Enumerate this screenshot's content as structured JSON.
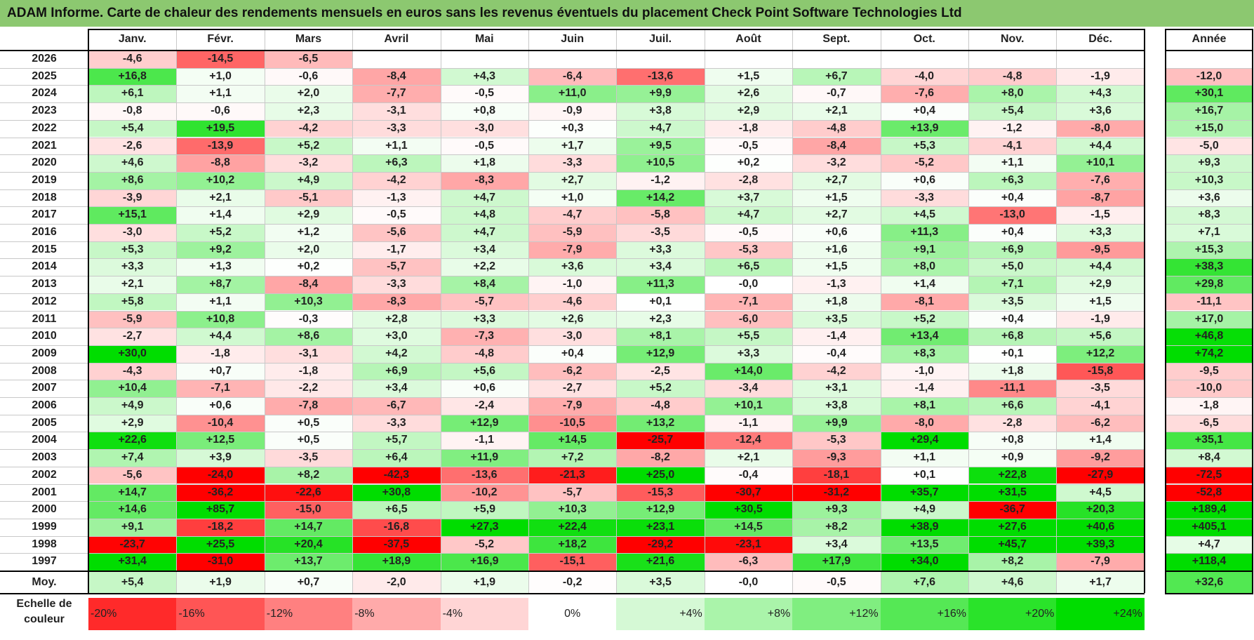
{
  "title": "ADAM Informe. Carte de chaleur des rendements mensuels en euros sans les revenus éventuels du placement Check Point Software Technologies Ltd",
  "chart_data": {
    "type": "heatmap",
    "title": "ADAM Informe. Carte de chaleur des rendements mensuels en euros sans les revenus éventuels du placement Check Point Software Technologies Ltd",
    "columns": [
      "Janv.",
      "Févr.",
      "Mars",
      "Avril",
      "Mai",
      "Juin",
      "Juil.",
      "Août",
      "Sept.",
      "Oct.",
      "Nov.",
      "Déc."
    ],
    "year_column_label": "Année",
    "rows": [
      {
        "year": "2026",
        "months": [
          "-4,6",
          "-14,5",
          "-6,5",
          "",
          "",
          "",
          "",
          "",
          "",
          "",
          "",
          ""
        ],
        "annual": ""
      },
      {
        "year": "2025",
        "months": [
          "+16,8",
          "+1,0",
          "-0,6",
          "-8,4",
          "+4,3",
          "-6,4",
          "-13,6",
          "+1,5",
          "+6,7",
          "-4,0",
          "-4,8",
          "-1,9"
        ],
        "annual": "-12,0"
      },
      {
        "year": "2024",
        "months": [
          "+6,1",
          "+1,1",
          "+2,0",
          "-7,7",
          "-0,5",
          "+11,0",
          "+9,9",
          "+2,6",
          "-0,7",
          "-7,6",
          "+8,0",
          "+4,3"
        ],
        "annual": "+30,1"
      },
      {
        "year": "2023",
        "months": [
          "-0,8",
          "-0,6",
          "+2,3",
          "-3,1",
          "+0,8",
          "-0,9",
          "+3,8",
          "+2,9",
          "+2,1",
          "+0,4",
          "+5,4",
          "+3,6"
        ],
        "annual": "+16,7"
      },
      {
        "year": "2022",
        "months": [
          "+5,4",
          "+19,5",
          "-4,2",
          "-3,3",
          "-3,0",
          "+0,3",
          "+4,7",
          "-1,8",
          "-4,8",
          "+13,9",
          "-1,2",
          "-8,0"
        ],
        "annual": "+15,0"
      },
      {
        "year": "2021",
        "months": [
          "-2,6",
          "-13,9",
          "+5,2",
          "+1,1",
          "-0,5",
          "+1,7",
          "+9,5",
          "-0,5",
          "-8,4",
          "+5,3",
          "-4,1",
          "+4,4"
        ],
        "annual": "-5,0"
      },
      {
        "year": "2020",
        "months": [
          "+4,6",
          "-8,8",
          "-3,2",
          "+6,3",
          "+1,8",
          "-3,3",
          "+10,5",
          "+0,2",
          "-3,2",
          "-5,2",
          "+1,1",
          "+10,1"
        ],
        "annual": "+9,3"
      },
      {
        "year": "2019",
        "months": [
          "+8,6",
          "+10,2",
          "+4,9",
          "-4,2",
          "-8,3",
          "+2,7",
          "-1,2",
          "-2,8",
          "+2,7",
          "+0,6",
          "+6,3",
          "-7,6"
        ],
        "annual": "+10,3"
      },
      {
        "year": "2018",
        "months": [
          "-3,9",
          "+2,1",
          "-5,1",
          "-1,3",
          "+4,7",
          "+1,0",
          "+14,2",
          "+3,7",
          "+1,5",
          "-3,3",
          "+0,4",
          "-8,7"
        ],
        "annual": "+3,6"
      },
      {
        "year": "2017",
        "months": [
          "+15,1",
          "+1,4",
          "+2,9",
          "-0,5",
          "+4,8",
          "-4,7",
          "-5,8",
          "+4,7",
          "+2,7",
          "+4,5",
          "-13,0",
          "-1,5"
        ],
        "annual": "+8,3"
      },
      {
        "year": "2016",
        "months": [
          "-3,0",
          "+5,2",
          "+1,2",
          "-5,6",
          "+4,7",
          "-5,9",
          "-3,5",
          "-0,5",
          "+0,6",
          "+11,3",
          "+0,4",
          "+3,3"
        ],
        "annual": "+7,1"
      },
      {
        "year": "2015",
        "months": [
          "+5,3",
          "+9,2",
          "+2,0",
          "-1,7",
          "+3,4",
          "-7,9",
          "+3,3",
          "-5,3",
          "+1,6",
          "+9,1",
          "+6,9",
          "-9,5"
        ],
        "annual": "+15,3"
      },
      {
        "year": "2014",
        "months": [
          "+3,3",
          "+1,3",
          "+0,2",
          "-5,7",
          "+2,2",
          "+3,6",
          "+3,4",
          "+6,5",
          "+1,5",
          "+8,0",
          "+5,0",
          "+4,4"
        ],
        "annual": "+38,3"
      },
      {
        "year": "2013",
        "months": [
          "+2,1",
          "+8,7",
          "-8,4",
          "-3,3",
          "+8,4",
          "-1,0",
          "+11,3",
          "-0,0",
          "-1,3",
          "+1,4",
          "+7,1",
          "+2,9"
        ],
        "annual": "+29,8"
      },
      {
        "year": "2012",
        "months": [
          "+5,8",
          "+1,1",
          "+10,3",
          "-8,3",
          "-5,7",
          "-4,6",
          "+0,1",
          "-7,1",
          "+1,8",
          "-8,1",
          "+3,5",
          "+1,5"
        ],
        "annual": "-11,1"
      },
      {
        "year": "2011",
        "months": [
          "-5,9",
          "+10,8",
          "-0,3",
          "+2,8",
          "+3,3",
          "+2,6",
          "+2,3",
          "-6,0",
          "+3,5",
          "+5,2",
          "+0,4",
          "-1,9"
        ],
        "annual": "+17,0"
      },
      {
        "year": "2010",
        "months": [
          "-2,7",
          "+4,4",
          "+8,6",
          "+3,0",
          "-7,3",
          "-3,0",
          "+8,1",
          "+5,5",
          "-1,4",
          "+13,4",
          "+6,8",
          "+5,6"
        ],
        "annual": "+46,8"
      },
      {
        "year": "2009",
        "months": [
          "+30,0",
          "-1,8",
          "-3,1",
          "+4,2",
          "-4,8",
          "+0,4",
          "+12,9",
          "+3,3",
          "-0,4",
          "+8,3",
          "+0,1",
          "+12,2"
        ],
        "annual": "+74,2"
      },
      {
        "year": "2008",
        "months": [
          "-4,3",
          "+0,7",
          "-1,8",
          "+6,9",
          "+5,6",
          "-6,2",
          "-2,5",
          "+14,0",
          "-4,2",
          "-1,0",
          "+1,8",
          "-15,8"
        ],
        "annual": "-9,5"
      },
      {
        "year": "2007",
        "months": [
          "+10,4",
          "-7,1",
          "-2,2",
          "+3,4",
          "+0,6",
          "-2,7",
          "+5,2",
          "-3,4",
          "+3,1",
          "-1,4",
          "-11,1",
          "-3,5"
        ],
        "annual": "-10,0"
      },
      {
        "year": "2006",
        "months": [
          "+4,9",
          "+0,6",
          "-7,8",
          "-6,7",
          "-2,4",
          "-7,9",
          "-4,8",
          "+10,1",
          "+3,8",
          "+8,1",
          "+6,6",
          "-4,1"
        ],
        "annual": "-1,8"
      },
      {
        "year": "2005",
        "months": [
          "+2,9",
          "-10,4",
          "+0,5",
          "-3,3",
          "+12,9",
          "-10,5",
          "+13,2",
          "-1,1",
          "+9,9",
          "-8,0",
          "-2,8",
          "-6,2"
        ],
        "annual": "-6,5"
      },
      {
        "year": "2004",
        "months": [
          "+22,6",
          "+12,5",
          "+0,5",
          "+5,7",
          "-1,1",
          "+14,5",
          "-25,7",
          "-12,4",
          "-5,3",
          "+29,4",
          "+0,8",
          "+1,4"
        ],
        "annual": "+35,1"
      },
      {
        "year": "2003",
        "months": [
          "+7,4",
          "+3,9",
          "-3,5",
          "+6,4",
          "+11,9",
          "+7,2",
          "-8,2",
          "+2,1",
          "-9,3",
          "+1,1",
          "+0,9",
          "-9,2"
        ],
        "annual": "+8,4"
      },
      {
        "year": "2002",
        "months": [
          "-5,6",
          "-24,0",
          "+8,2",
          "-42,3",
          "-13,6",
          "-21,3",
          "+25,0",
          "-0,4",
          "-18,1",
          "+0,1",
          "+22,8",
          "-27,9"
        ],
        "annual": "-72,5"
      },
      {
        "year": "2001",
        "months": [
          "+14,7",
          "-36,2",
          "-22,6",
          "+30,8",
          "-10,2",
          "-5,7",
          "-15,3",
          "-30,7",
          "-31,2",
          "+35,7",
          "+31,5",
          "+4,5"
        ],
        "annual": "-52,8"
      },
      {
        "year": "2000",
        "months": [
          "+14,6",
          "+85,7",
          "-15,0",
          "+6,5",
          "+5,9",
          "+10,3",
          "+12,9",
          "+30,5",
          "+9,3",
          "+4,9",
          "-36,7",
          "+20,3"
        ],
        "annual": "+189,4"
      },
      {
        "year": "1999",
        "months": [
          "+9,1",
          "-18,2",
          "+14,7",
          "-16,8",
          "+27,3",
          "+22,4",
          "+23,1",
          "+14,5",
          "+8,2",
          "+38,9",
          "+27,6",
          "+40,6"
        ],
        "annual": "+405,1"
      },
      {
        "year": "1998",
        "months": [
          "-23,7",
          "+25,5",
          "+20,4",
          "-37,5",
          "-5,2",
          "+18,2",
          "-29,2",
          "-23,1",
          "+3,4",
          "+13,5",
          "+45,7",
          "+39,3"
        ],
        "annual": "+4,7"
      },
      {
        "year": "1997",
        "months": [
          "+31,4",
          "-31,0",
          "+13,7",
          "+18,9",
          "+16,9",
          "-15,1",
          "+21,6",
          "-6,3",
          "+17,9",
          "+34,0",
          "+8,2",
          "-7,9"
        ],
        "annual": "+118,4"
      }
    ],
    "average": {
      "label": "Moy.",
      "months": [
        "+5,4",
        "+1,9",
        "+0,7",
        "-2,0",
        "+1,9",
        "-0,2",
        "+3,5",
        "-0,0",
        "-0,5",
        "+7,6",
        "+4,6",
        "+1,7"
      ],
      "annual": "+32,6"
    },
    "scale": {
      "label_line1": "Echelle de",
      "label_line2": "couleur",
      "steps": [
        {
          "label": "-20%",
          "value": -20
        },
        {
          "label": "-16%",
          "value": -16
        },
        {
          "label": "-12%",
          "value": -12
        },
        {
          "label": "-8%",
          "value": -8
        },
        {
          "label": "-4%",
          "value": -4
        },
        {
          "label": "0%",
          "value": 0
        },
        {
          "label": "+4%",
          "value": 4
        },
        {
          "label": "+8%",
          "value": 8
        },
        {
          "label": "+12%",
          "value": 12
        },
        {
          "label": "+16%",
          "value": 16
        },
        {
          "label": "+20%",
          "value": 20
        },
        {
          "label": "+24%",
          "value": 24
        }
      ]
    },
    "colors": {
      "max_red": "#ff0000",
      "max_green": "#00dd00",
      "neutral": "#ffffff",
      "title_bg": "#8cc870"
    }
  }
}
